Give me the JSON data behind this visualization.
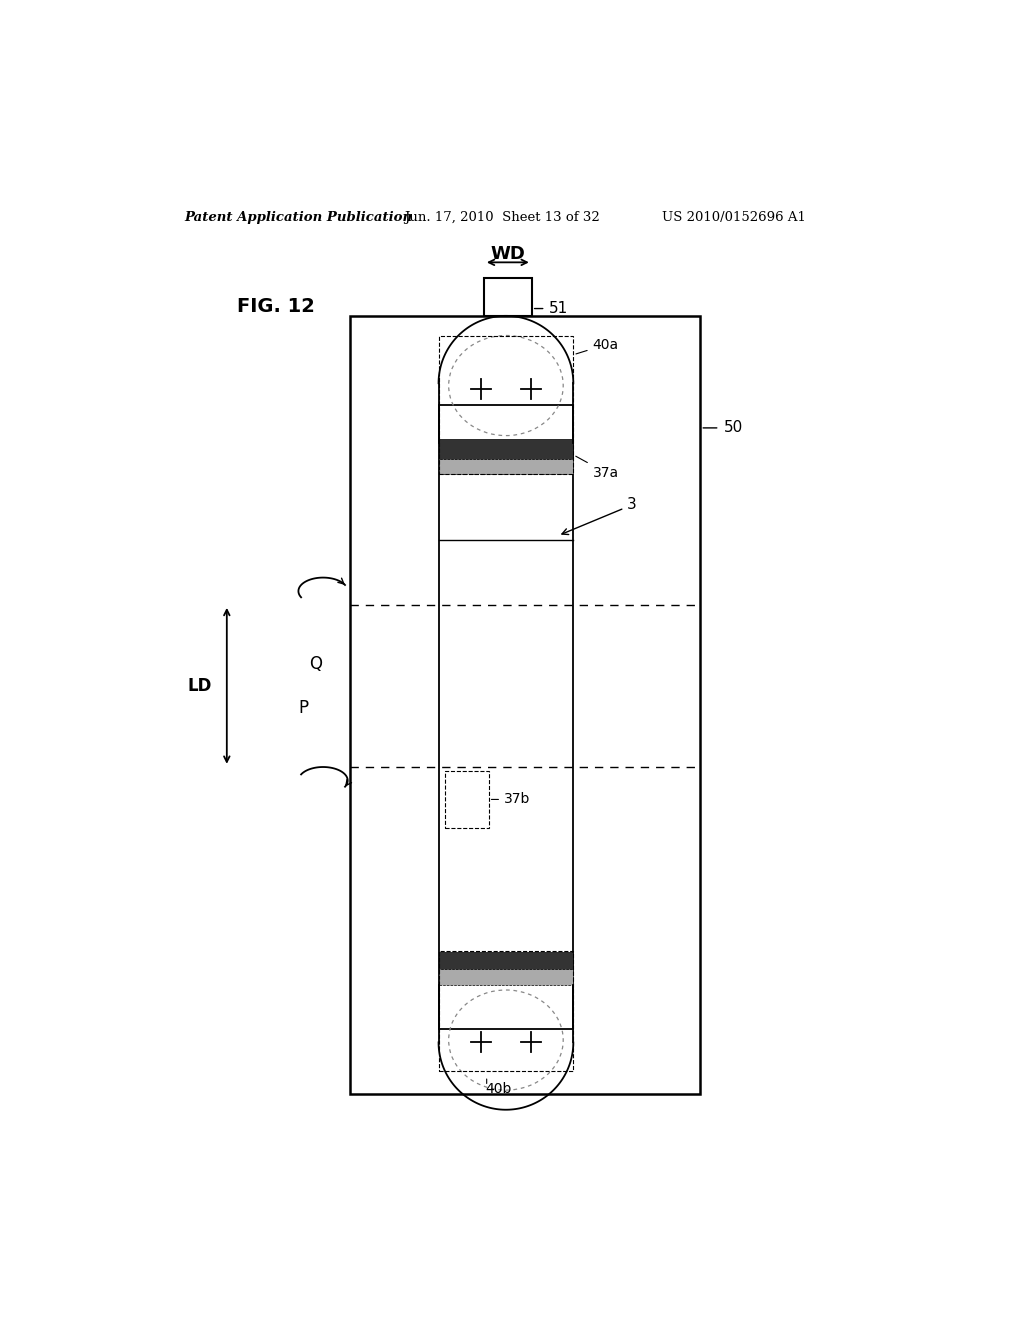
{
  "bg_color": "#ffffff",
  "header_left": "Patent Application Publication",
  "header_mid": "Jun. 17, 2010  Sheet 13 of 32",
  "header_right": "US 2010/0152696 A1",
  "fig_label": "FIG. 12"
}
